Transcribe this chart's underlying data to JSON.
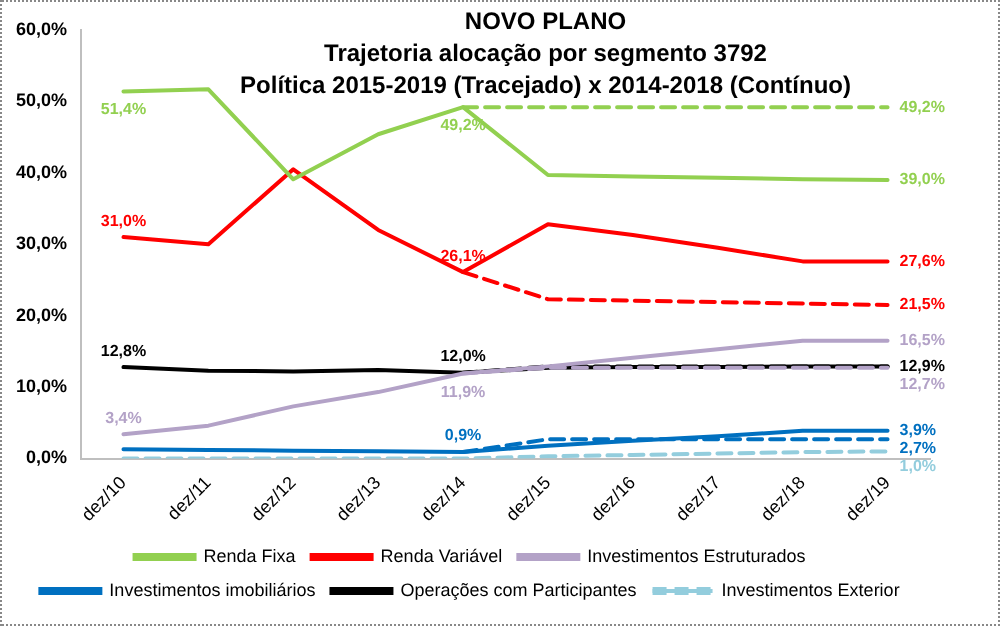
{
  "chart_data": {
    "type": "line",
    "title": "NOVO PLANO",
    "subtitle": "Trajetoria alocação por segmento 3792\nPolítica 2015-2019 (Tracejado) x 2014-2018 (Contínuo)",
    "categories": [
      "dez/10",
      "dez/11",
      "dez/12",
      "dez/13",
      "dez/14",
      "dez/15",
      "dez/16",
      "dez/17",
      "dez/18",
      "dez/19"
    ],
    "ylim": [
      0,
      60
    ],
    "yticks": [
      {
        "value": 0,
        "label": "0,0%"
      },
      {
        "value": 10,
        "label": "10,0%"
      },
      {
        "value": 20,
        "label": "20,0%"
      },
      {
        "value": 30,
        "label": "30,0%"
      },
      {
        "value": 40,
        "label": "40,0%"
      },
      {
        "value": 50,
        "label": "50,0%"
      },
      {
        "value": 60,
        "label": "60,0%"
      }
    ],
    "grid": false,
    "legend": "bottom",
    "marker": "none",
    "series": [
      {
        "name": "Renda Fixa",
        "color": "#92d050",
        "line_style": "solid",
        "values": [
          51.4,
          51.7,
          39.1,
          45.4,
          49.2,
          39.7,
          39.5,
          39.3,
          39.1,
          39.0
        ],
        "value_labels": [
          "51,4%",
          null,
          null,
          null,
          "49,2%",
          null,
          null,
          null,
          null,
          "39,0%"
        ]
      },
      {
        "color": "#92d050",
        "line_style": "dashed",
        "values": [
          null,
          null,
          null,
          null,
          49.2,
          49.2,
          49.2,
          49.2,
          49.2,
          49.2
        ],
        "value_labels": [
          null,
          null,
          null,
          null,
          null,
          null,
          null,
          null,
          null,
          "49,2%"
        ]
      },
      {
        "name": "Renda Variável",
        "color": "#ff0000",
        "line_style": "solid",
        "values": [
          31.0,
          30.0,
          40.5,
          32.0,
          26.1,
          32.8,
          31.3,
          29.5,
          27.6,
          27.6
        ],
        "value_labels": [
          "31,0%",
          null,
          null,
          null,
          "26,1%",
          null,
          null,
          null,
          null,
          "27,6%"
        ]
      },
      {
        "color": "#ff0000",
        "line_style": "dashed",
        "values": [
          null,
          null,
          null,
          null,
          26.1,
          22.3,
          22.1,
          21.9,
          21.7,
          21.5
        ],
        "value_labels": [
          null,
          null,
          null,
          null,
          null,
          null,
          null,
          null,
          null,
          "21,5%"
        ]
      },
      {
        "name": "Investimentos Estruturados",
        "color": "#b3a2c7",
        "line_style": "solid",
        "values": [
          3.4,
          4.6,
          7.3,
          9.3,
          11.9,
          12.9,
          14.1,
          15.3,
          16.5,
          16.5
        ],
        "value_labels": [
          "3,4%",
          null,
          null,
          null,
          "11,9%",
          null,
          null,
          null,
          null,
          "16,5%"
        ]
      },
      {
        "color": "#b3a2c7",
        "line_style": "dashed",
        "values": [
          null,
          null,
          null,
          null,
          11.9,
          12.7,
          12.7,
          12.7,
          12.7,
          12.7
        ],
        "value_labels": [
          null,
          null,
          null,
          null,
          null,
          null,
          null,
          null,
          null,
          "12,7%"
        ]
      },
      {
        "name": "Investimentos imobiliários",
        "color": "#0070c0",
        "line_style": "solid",
        "values": [
          1.3,
          1.2,
          1.1,
          1.0,
          0.9,
          1.8,
          2.5,
          3.1,
          3.9,
          3.9
        ],
        "value_labels": [
          null,
          null,
          null,
          null,
          "0,9%",
          null,
          null,
          null,
          null,
          "3,9%"
        ]
      },
      {
        "color": "#0070c0",
        "line_style": "dashed",
        "values": [
          null,
          null,
          null,
          null,
          0.9,
          2.7,
          2.7,
          2.7,
          2.7,
          2.7
        ],
        "value_labels": [
          null,
          null,
          null,
          null,
          null,
          null,
          null,
          null,
          null,
          "2,7%"
        ]
      },
      {
        "name": "Operações com Participantes",
        "color": "#000000",
        "line_style": "solid",
        "values": [
          12.8,
          12.3,
          12.2,
          12.4,
          12.0,
          12.7,
          12.8,
          12.8,
          12.9,
          12.9
        ],
        "value_labels": [
          "12,8%",
          null,
          null,
          null,
          "12,0%",
          null,
          null,
          null,
          null,
          "12,9%"
        ]
      },
      {
        "color": "#000000",
        "line_style": "dashed",
        "values": [
          null,
          null,
          null,
          null,
          12.0,
          12.9,
          12.9,
          12.9,
          12.9,
          12.9
        ],
        "value_labels": [
          null,
          null,
          null,
          null,
          null,
          null,
          null,
          null,
          null,
          null
        ]
      },
      {
        "name": "Investimentos Exterior",
        "color": "#93cddd",
        "line_style": "dashed",
        "values": [
          0,
          0,
          0,
          0,
          0,
          0.3,
          0.5,
          0.7,
          0.9,
          1.0
        ],
        "value_labels": [
          null,
          null,
          null,
          null,
          null,
          null,
          null,
          null,
          null,
          "1,0%"
        ]
      }
    ]
  }
}
